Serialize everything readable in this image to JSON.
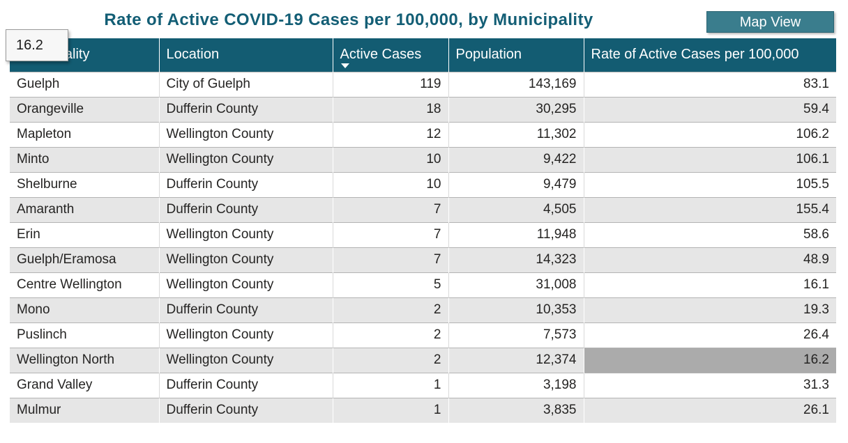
{
  "header": {
    "title": "Rate of Active COVID-19 Cases per 100,000, by Municipality",
    "map_view_button": "Map View"
  },
  "tooltip": {
    "value": "16.2"
  },
  "table": {
    "columns": [
      {
        "key": "municipality",
        "label": "Municipality",
        "align": "left"
      },
      {
        "key": "location",
        "label": "Location",
        "align": "left"
      },
      {
        "key": "active_cases",
        "label": "Active Cases",
        "align": "right",
        "sorted": "descending"
      },
      {
        "key": "population",
        "label": "Population",
        "align": "right"
      },
      {
        "key": "rate",
        "label": "Rate of Active Cases per 100,000",
        "align": "right"
      }
    ],
    "rows": [
      [
        "Guelph",
        "City of Guelph",
        "119",
        "143,169",
        "83.1"
      ],
      [
        "Orangeville",
        "Dufferin County",
        "18",
        "30,295",
        "59.4"
      ],
      [
        "Mapleton",
        "Wellington County",
        "12",
        "11,302",
        "106.2"
      ],
      [
        "Minto",
        "Wellington County",
        "10",
        "9,422",
        "106.1"
      ],
      [
        "Shelburne",
        "Dufferin County",
        "10",
        "9,479",
        "105.5"
      ],
      [
        "Amaranth",
        "Dufferin County",
        "7",
        "4,505",
        "155.4"
      ],
      [
        "Erin",
        "Wellington County",
        "7",
        "11,948",
        "58.6"
      ],
      [
        "Guelph/Eramosa",
        "Wellington County",
        "7",
        "14,323",
        "48.9"
      ],
      [
        "Centre Wellington",
        "Wellington County",
        "5",
        "31,008",
        "16.1"
      ],
      [
        "Mono",
        "Dufferin County",
        "2",
        "10,353",
        "19.3"
      ],
      [
        "Puslinch",
        "Wellington County",
        "2",
        "7,573",
        "26.4"
      ],
      [
        "Wellington North",
        "Wellington County",
        "2",
        "12,374",
        "16.2"
      ],
      [
        "Grand Valley",
        "Dufferin County",
        "1",
        "3,198",
        "31.3"
      ],
      [
        "Mulmur",
        "Dufferin County",
        "1",
        "3,835",
        "26.1"
      ]
    ],
    "highlight": {
      "row_index": 11,
      "col_index": 4,
      "value": "16.2"
    }
  },
  "colors": {
    "accent_teal": "#135C72",
    "title_teal": "#135E75",
    "button_teal": "#3A7D8D",
    "alt_row_gray": "#E6E6E6",
    "highlight_gray": "#ABABAB",
    "row_line": "#B3B3B3",
    "body_text": "#252423"
  }
}
